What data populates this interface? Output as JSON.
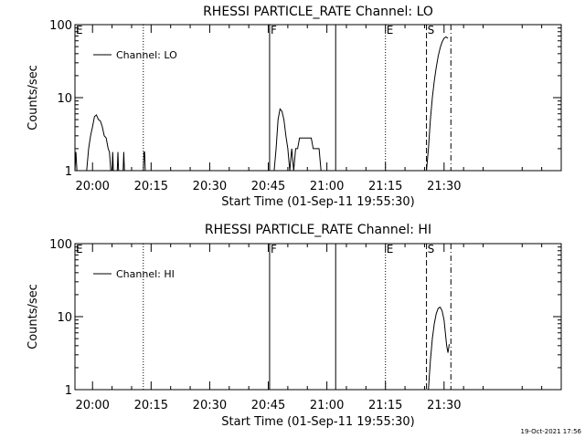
{
  "footer_timestamp": "19-Oct-2021 17:56",
  "chart_data": [
    {
      "type": "line",
      "title": "RHESSI PARTICLE_RATE Channel: LO",
      "xlabel": "Start Time (01-Sep-11 19:55:30)",
      "ylabel": "Counts/sec",
      "y_scale": "log",
      "ylim": [
        1,
        100
      ],
      "y_ticks": [
        {
          "value": 1,
          "label": "1"
        },
        {
          "value": 10,
          "label": "10"
        },
        {
          "value": 100,
          "label": "100"
        }
      ],
      "x_unit": "clock time",
      "xlim": [
        "19:55:30",
        "22:00:00"
      ],
      "x_ticks": [
        "20:00",
        "20:15",
        "20:30",
        "20:45",
        "21:00",
        "21:15",
        "21:30"
      ],
      "grid": false,
      "legend": {
        "position": "top-left",
        "entries": [
          "Channel: LO"
        ]
      },
      "series": [
        {
          "name": "Channel: LO",
          "points": [
            [
              "19:55:30",
              1
            ],
            [
              "19:55:45",
              1.8
            ],
            [
              "19:56:00",
              1
            ],
            [
              "19:58:30",
              1
            ],
            [
              "19:59:00",
              2.0
            ],
            [
              "19:59:30",
              3.0
            ],
            [
              "20:00:00",
              4.0
            ],
            [
              "20:00:30",
              5.5
            ],
            [
              "20:01:00",
              5.8
            ],
            [
              "20:01:30",
              5.0
            ],
            [
              "20:02:00",
              4.8
            ],
            [
              "20:02:30",
              4.0
            ],
            [
              "20:03:00",
              3.0
            ],
            [
              "20:03:30",
              2.8
            ],
            [
              "20:04:00",
              2.0
            ],
            [
              "20:04:20",
              1.8
            ],
            [
              "20:04:40",
              1.0
            ],
            [
              "20:05:00",
              1.0
            ],
            [
              "20:05:10",
              1.8
            ],
            [
              "20:05:20",
              1.0
            ],
            [
              "20:06:20",
              1.0
            ],
            [
              "20:06:30",
              1.8
            ],
            [
              "20:06:40",
              1.0
            ],
            [
              "20:07:50",
              1.0
            ],
            [
              "20:08:00",
              1.8
            ],
            [
              "20:08:10",
              1.0
            ],
            [
              "20:13:00",
              1.0
            ],
            [
              "20:13:10",
              1.8
            ],
            [
              "20:13:20",
              1.8
            ],
            [
              "20:13:30",
              1.0
            ],
            [
              "20:46:30",
              1.0
            ],
            [
              "20:47:00",
              2.0
            ],
            [
              "20:47:30",
              5.0
            ],
            [
              "20:48:00",
              7.0
            ],
            [
              "20:48:30",
              6.5
            ],
            [
              "20:49:00",
              5.0
            ],
            [
              "20:49:30",
              3.0
            ],
            [
              "20:50:00",
              2.0
            ],
            [
              "20:50:30",
              1.0
            ],
            [
              "20:51:00",
              2.0
            ],
            [
              "20:51:30",
              1.0
            ],
            [
              "20:52:00",
              2.0
            ],
            [
              "20:52:30",
              2.0
            ],
            [
              "20:53:00",
              2.8
            ],
            [
              "20:55:00",
              2.8
            ],
            [
              "20:56:00",
              2.8
            ],
            [
              "20:56:30",
              2.0
            ],
            [
              "20:58:00",
              2.0
            ],
            [
              "20:58:30",
              1.0
            ],
            [
              "21:25:30",
              1.0
            ],
            [
              "21:26:00",
              2.0
            ],
            [
              "21:26:30",
              5.0
            ],
            [
              "21:27:00",
              10
            ],
            [
              "21:27:30",
              17
            ],
            [
              "21:28:00",
              26
            ],
            [
              "21:28:30",
              37
            ],
            [
              "21:29:00",
              48
            ],
            [
              "21:29:30",
              58
            ],
            [
              "21:30:00",
              65
            ],
            [
              "21:30:30",
              68
            ],
            [
              "21:31:00",
              65
            ]
          ]
        }
      ],
      "markers": [
        {
          "label": "E",
          "time": "19:55:30",
          "style": "none"
        },
        {
          "label": "",
          "time": "20:13:00",
          "style": "dotted"
        },
        {
          "label": "F",
          "time": "20:45:20",
          "style": "solid"
        },
        {
          "label": "",
          "time": "21:02:15",
          "style": "solid"
        },
        {
          "label": "E",
          "time": "21:15:00",
          "style": "dotted"
        },
        {
          "label": "S",
          "time": "21:25:30",
          "style": "dashed"
        },
        {
          "label": "",
          "time": "21:31:45",
          "style": "dash-dot"
        }
      ]
    },
    {
      "type": "line",
      "title": "RHESSI PARTICLE_RATE Channel: HI",
      "xlabel": "Start Time (01-Sep-11 19:55:30)",
      "ylabel": "Counts/sec",
      "y_scale": "log",
      "ylim": [
        1,
        100
      ],
      "y_ticks": [
        {
          "value": 1,
          "label": "1"
        },
        {
          "value": 10,
          "label": "10"
        },
        {
          "value": 100,
          "label": "100"
        }
      ],
      "x_unit": "clock time",
      "xlim": [
        "19:55:30",
        "22:00:00"
      ],
      "x_ticks": [
        "20:00",
        "20:15",
        "20:30",
        "20:45",
        "21:00",
        "21:15",
        "21:30"
      ],
      "grid": false,
      "legend": {
        "position": "top-left",
        "entries": [
          "Channel: HI"
        ]
      },
      "series": [
        {
          "name": "Channel: HI",
          "points": [
            [
              "21:26:00",
              1.0
            ],
            [
              "21:26:30",
              2.5
            ],
            [
              "21:27:00",
              5.0
            ],
            [
              "21:27:30",
              8.0
            ],
            [
              "21:28:00",
              11
            ],
            [
              "21:28:30",
              13
            ],
            [
              "21:29:00",
              13.5
            ],
            [
              "21:29:30",
              12
            ],
            [
              "21:30:00",
              9.0
            ],
            [
              "21:30:20",
              6.0
            ],
            [
              "21:30:40",
              4.0
            ],
            [
              "21:31:00",
              3.2
            ],
            [
              "21:31:20",
              4.2
            ]
          ]
        }
      ],
      "markers": [
        {
          "label": "E",
          "time": "19:55:30",
          "style": "none"
        },
        {
          "label": "",
          "time": "20:13:00",
          "style": "dotted"
        },
        {
          "label": "F",
          "time": "20:45:20",
          "style": "solid"
        },
        {
          "label": "",
          "time": "21:02:15",
          "style": "solid"
        },
        {
          "label": "E",
          "time": "21:15:00",
          "style": "dotted"
        },
        {
          "label": "S",
          "time": "21:25:30",
          "style": "dashed"
        },
        {
          "label": "",
          "time": "21:31:45",
          "style": "dash-dot"
        }
      ]
    }
  ]
}
